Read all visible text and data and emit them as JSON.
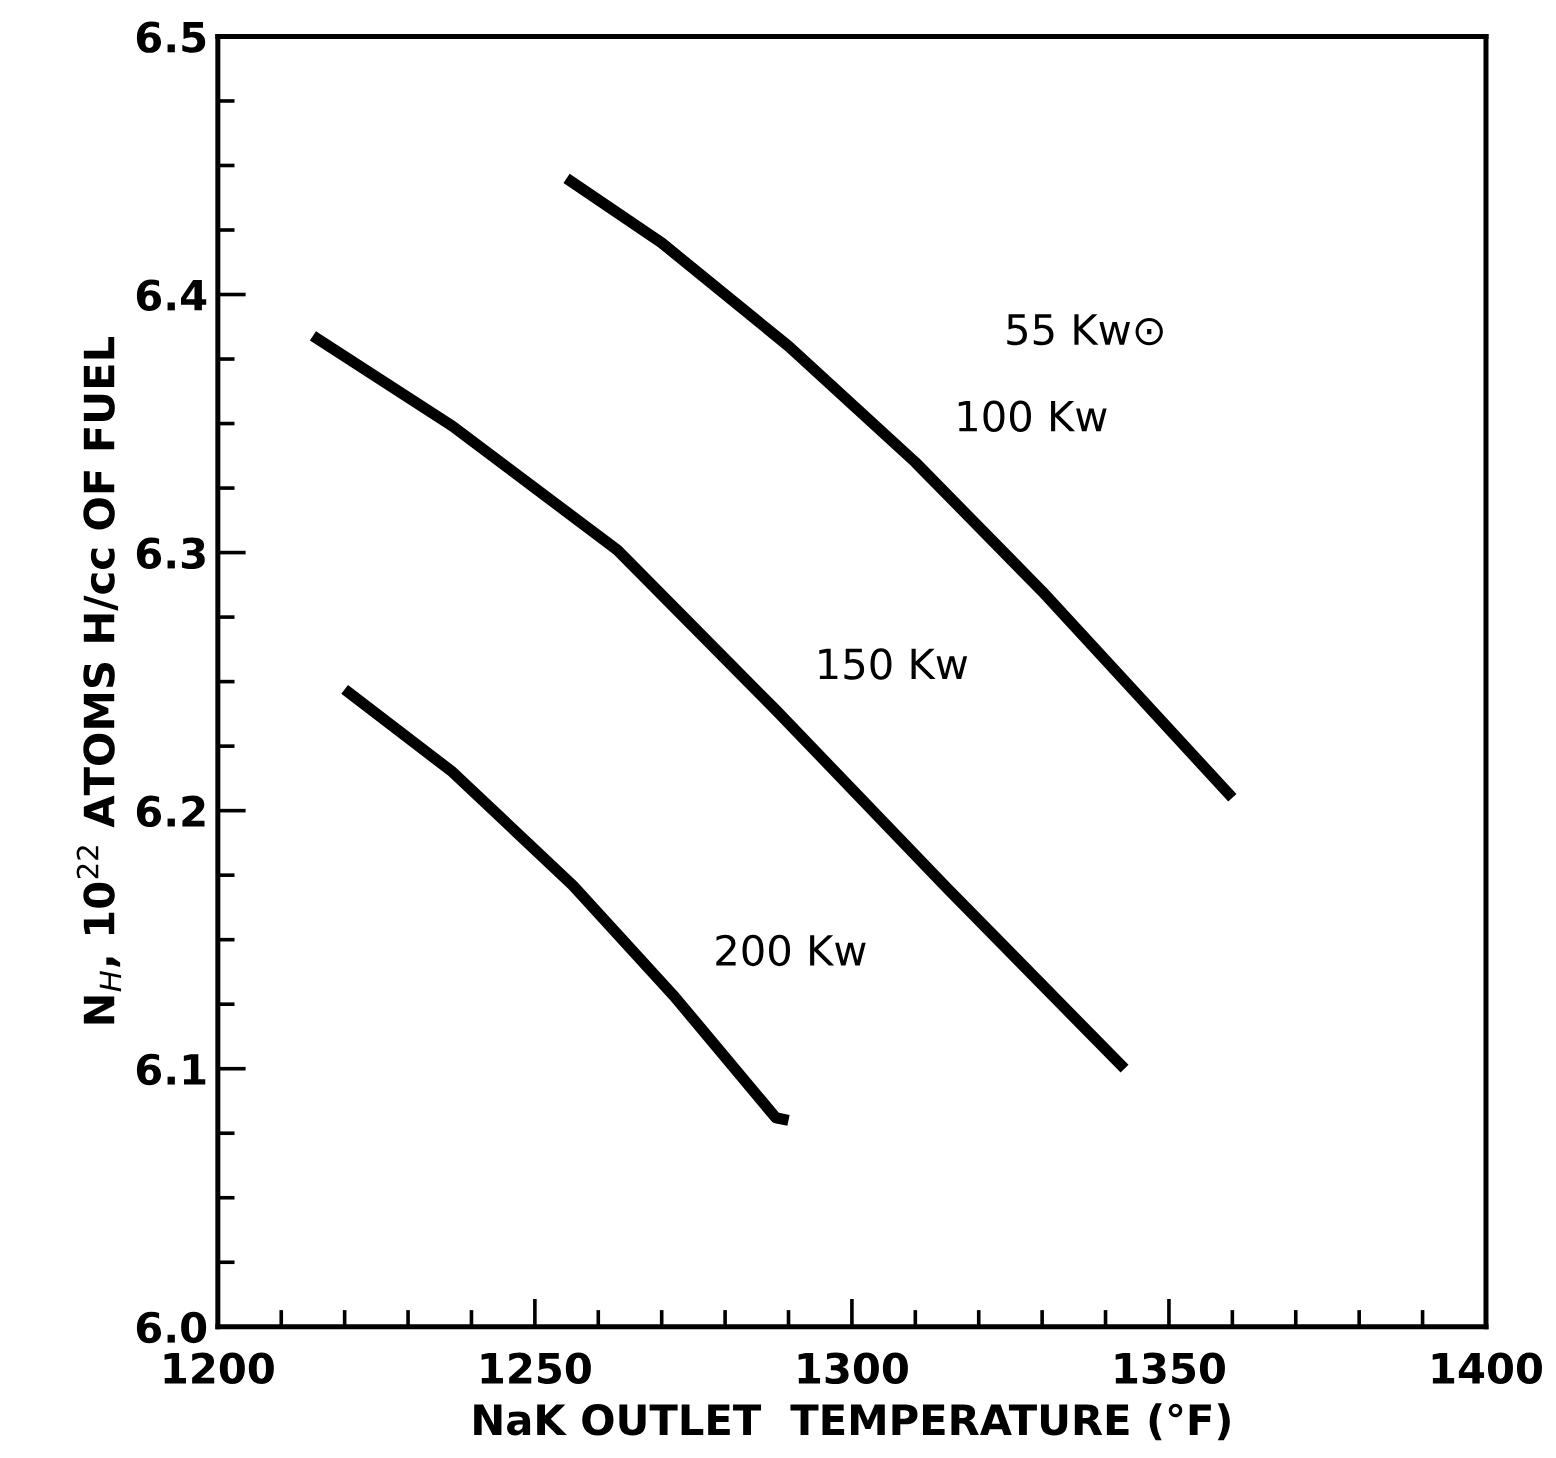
{
  "chart_data": {
    "type": "line",
    "xlabel": "NaK OUTLET  TEMPERATURE (°F)",
    "ylabel": "N$_{H}$, 10$^{22}$ ATOMS H/cc OF FUEL",
    "xlim": [
      1200,
      1400
    ],
    "xticks": [
      1200,
      1250,
      1300,
      1350,
      1400
    ],
    "ylim": [
      6.0,
      6.5
    ],
    "yticks": [
      {
        "value": 6.0,
        "label": "6.0"
      },
      6.1,
      6.2,
      6.3,
      6.4,
      6.5
    ],
    "grid": false,
    "marker": "none",
    "line_style": "solid",
    "series": [
      {
        "name": "100 Kw",
        "color": "#000000",
        "x": [
          1255,
          1270,
          1290,
          1310,
          1330,
          1345,
          1360
        ],
        "values": [
          6.445,
          6.42,
          6.38,
          6.335,
          6.285,
          6.245,
          6.205
        ]
      },
      {
        "name": "150 Kw",
        "color": "#000000",
        "x": [
          1215,
          1237,
          1263,
          1288,
          1315,
          1343
        ],
        "values": [
          6.384,
          6.349,
          6.301,
          6.239,
          6.17,
          6.1
        ]
      },
      {
        "name": "200 Kw",
        "color": "#000000",
        "x": [
          1220,
          1237,
          1256,
          1272,
          1288,
          1290
        ],
        "values": [
          6.247,
          6.215,
          6.171,
          6.128,
          6.081,
          6.08
        ]
      }
    ],
    "annotations": [
      "55 Kw⊙"
    ]
  }
}
